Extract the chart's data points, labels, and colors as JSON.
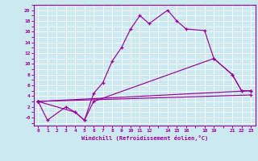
{
  "xlabel": "Windchill (Refroidissement éolien,°C)",
  "bg_color": "#cce8f0",
  "grid_color": "#ffffff",
  "line_color": "#990099",
  "axis_color": "#990099",
  "xlim": [
    -0.5,
    23.5
  ],
  "ylim": [
    -1.5,
    21.0
  ],
  "yticks": [
    20,
    18,
    16,
    14,
    12,
    10,
    8,
    6,
    4,
    2,
    0
  ],
  "ytick_labels": [
    "20",
    "18",
    "16",
    "14",
    "12",
    "10",
    "8",
    "6",
    "4",
    "2",
    "-0"
  ],
  "xticks": [
    0,
    1,
    2,
    3,
    4,
    5,
    6,
    7,
    8,
    9,
    10,
    11,
    12,
    14,
    15,
    16,
    18,
    19,
    21,
    22,
    23
  ],
  "xtick_labels": [
    "0",
    "1",
    "2",
    "3",
    "4",
    "5",
    "6",
    "7",
    "8",
    "9",
    "10",
    "11",
    "12",
    "14",
    "15",
    "16",
    "18",
    "19",
    "21",
    "22",
    "23"
  ],
  "series_main": [
    [
      0,
      3.0
    ],
    [
      1,
      -0.5
    ],
    [
      3,
      2.0
    ],
    [
      4,
      1.0
    ],
    [
      5,
      -0.5
    ],
    [
      6,
      4.5
    ],
    [
      7,
      6.5
    ],
    [
      8,
      10.5
    ],
    [
      9,
      13.0
    ],
    [
      10,
      16.5
    ],
    [
      11,
      19.0
    ],
    [
      12,
      17.5
    ],
    [
      14,
      20.0
    ],
    [
      15,
      18.0
    ],
    [
      16,
      16.5
    ],
    [
      18,
      16.2
    ],
    [
      19,
      11.0
    ],
    [
      21,
      8.0
    ],
    [
      22,
      5.0
    ],
    [
      23,
      5.0
    ]
  ],
  "series_line2": [
    [
      0,
      3.0
    ],
    [
      23,
      5.0
    ]
  ],
  "series_line3": [
    [
      0,
      3.0
    ],
    [
      23,
      4.2
    ]
  ],
  "series_line4": [
    [
      0,
      3.0
    ],
    [
      4,
      1.0
    ],
    [
      5,
      -0.5
    ],
    [
      6,
      3.0
    ],
    [
      19,
      11.0
    ],
    [
      21,
      8.0
    ],
    [
      22,
      5.0
    ],
    [
      23,
      5.0
    ]
  ]
}
